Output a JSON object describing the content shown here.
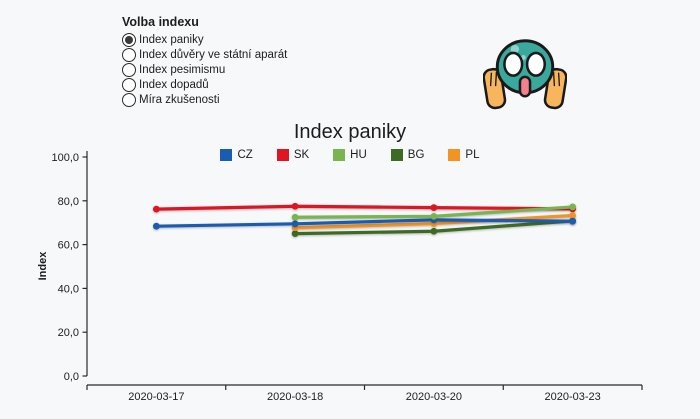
{
  "app": {
    "background": "#f7f8fa"
  },
  "controls": {
    "title": "Volba indexu",
    "options": [
      {
        "label": "Index paniky",
        "selected": true
      },
      {
        "label": "Index důvěry ve státní aparát",
        "selected": false
      },
      {
        "label": "Index pesimismu",
        "selected": false
      },
      {
        "label": "Index dopadů",
        "selected": false
      },
      {
        "label": "Míra zkušenosti",
        "selected": false
      }
    ]
  },
  "icon": {
    "name": "screaming-face",
    "face_color": "#3aa89d",
    "highlight_color": "#8fd2ca",
    "hand_color": "#f7b55e",
    "mouth_color": "#f2808d",
    "outline_color": "#1a1a1a"
  },
  "chart_data": {
    "type": "line",
    "title": "Index paniky",
    "xlabel": "",
    "ylabel": "Index",
    "categories": [
      "2020-03-17",
      "2020-03-18",
      "2020-03-20",
      "2020-03-23"
    ],
    "series": [
      {
        "name": "CZ",
        "color": "#1b5cb3",
        "values": [
          68.4,
          69.5,
          71.3,
          70.7
        ]
      },
      {
        "name": "SK",
        "color": "#e01523",
        "values": [
          76.2,
          77.5,
          76.9,
          76.3
        ]
      },
      {
        "name": "HU",
        "color": "#79b44e",
        "values": [
          null,
          72.5,
          72.9,
          77.2
        ]
      },
      {
        "name": "BG",
        "color": "#3e6b24",
        "values": [
          null,
          65.0,
          66.1,
          70.8
        ]
      },
      {
        "name": "PL",
        "color": "#f29421",
        "values": [
          null,
          67.7,
          69.6,
          73.3
        ]
      }
    ],
    "ylim": [
      0,
      100
    ],
    "ytick_values": [
      0,
      20,
      40,
      60,
      80,
      100
    ],
    "ytick_labels": [
      "0,0",
      "20,0",
      "40,0",
      "60,0",
      "80,0",
      "100,0"
    ],
    "grid": false,
    "legend_position": "top"
  }
}
